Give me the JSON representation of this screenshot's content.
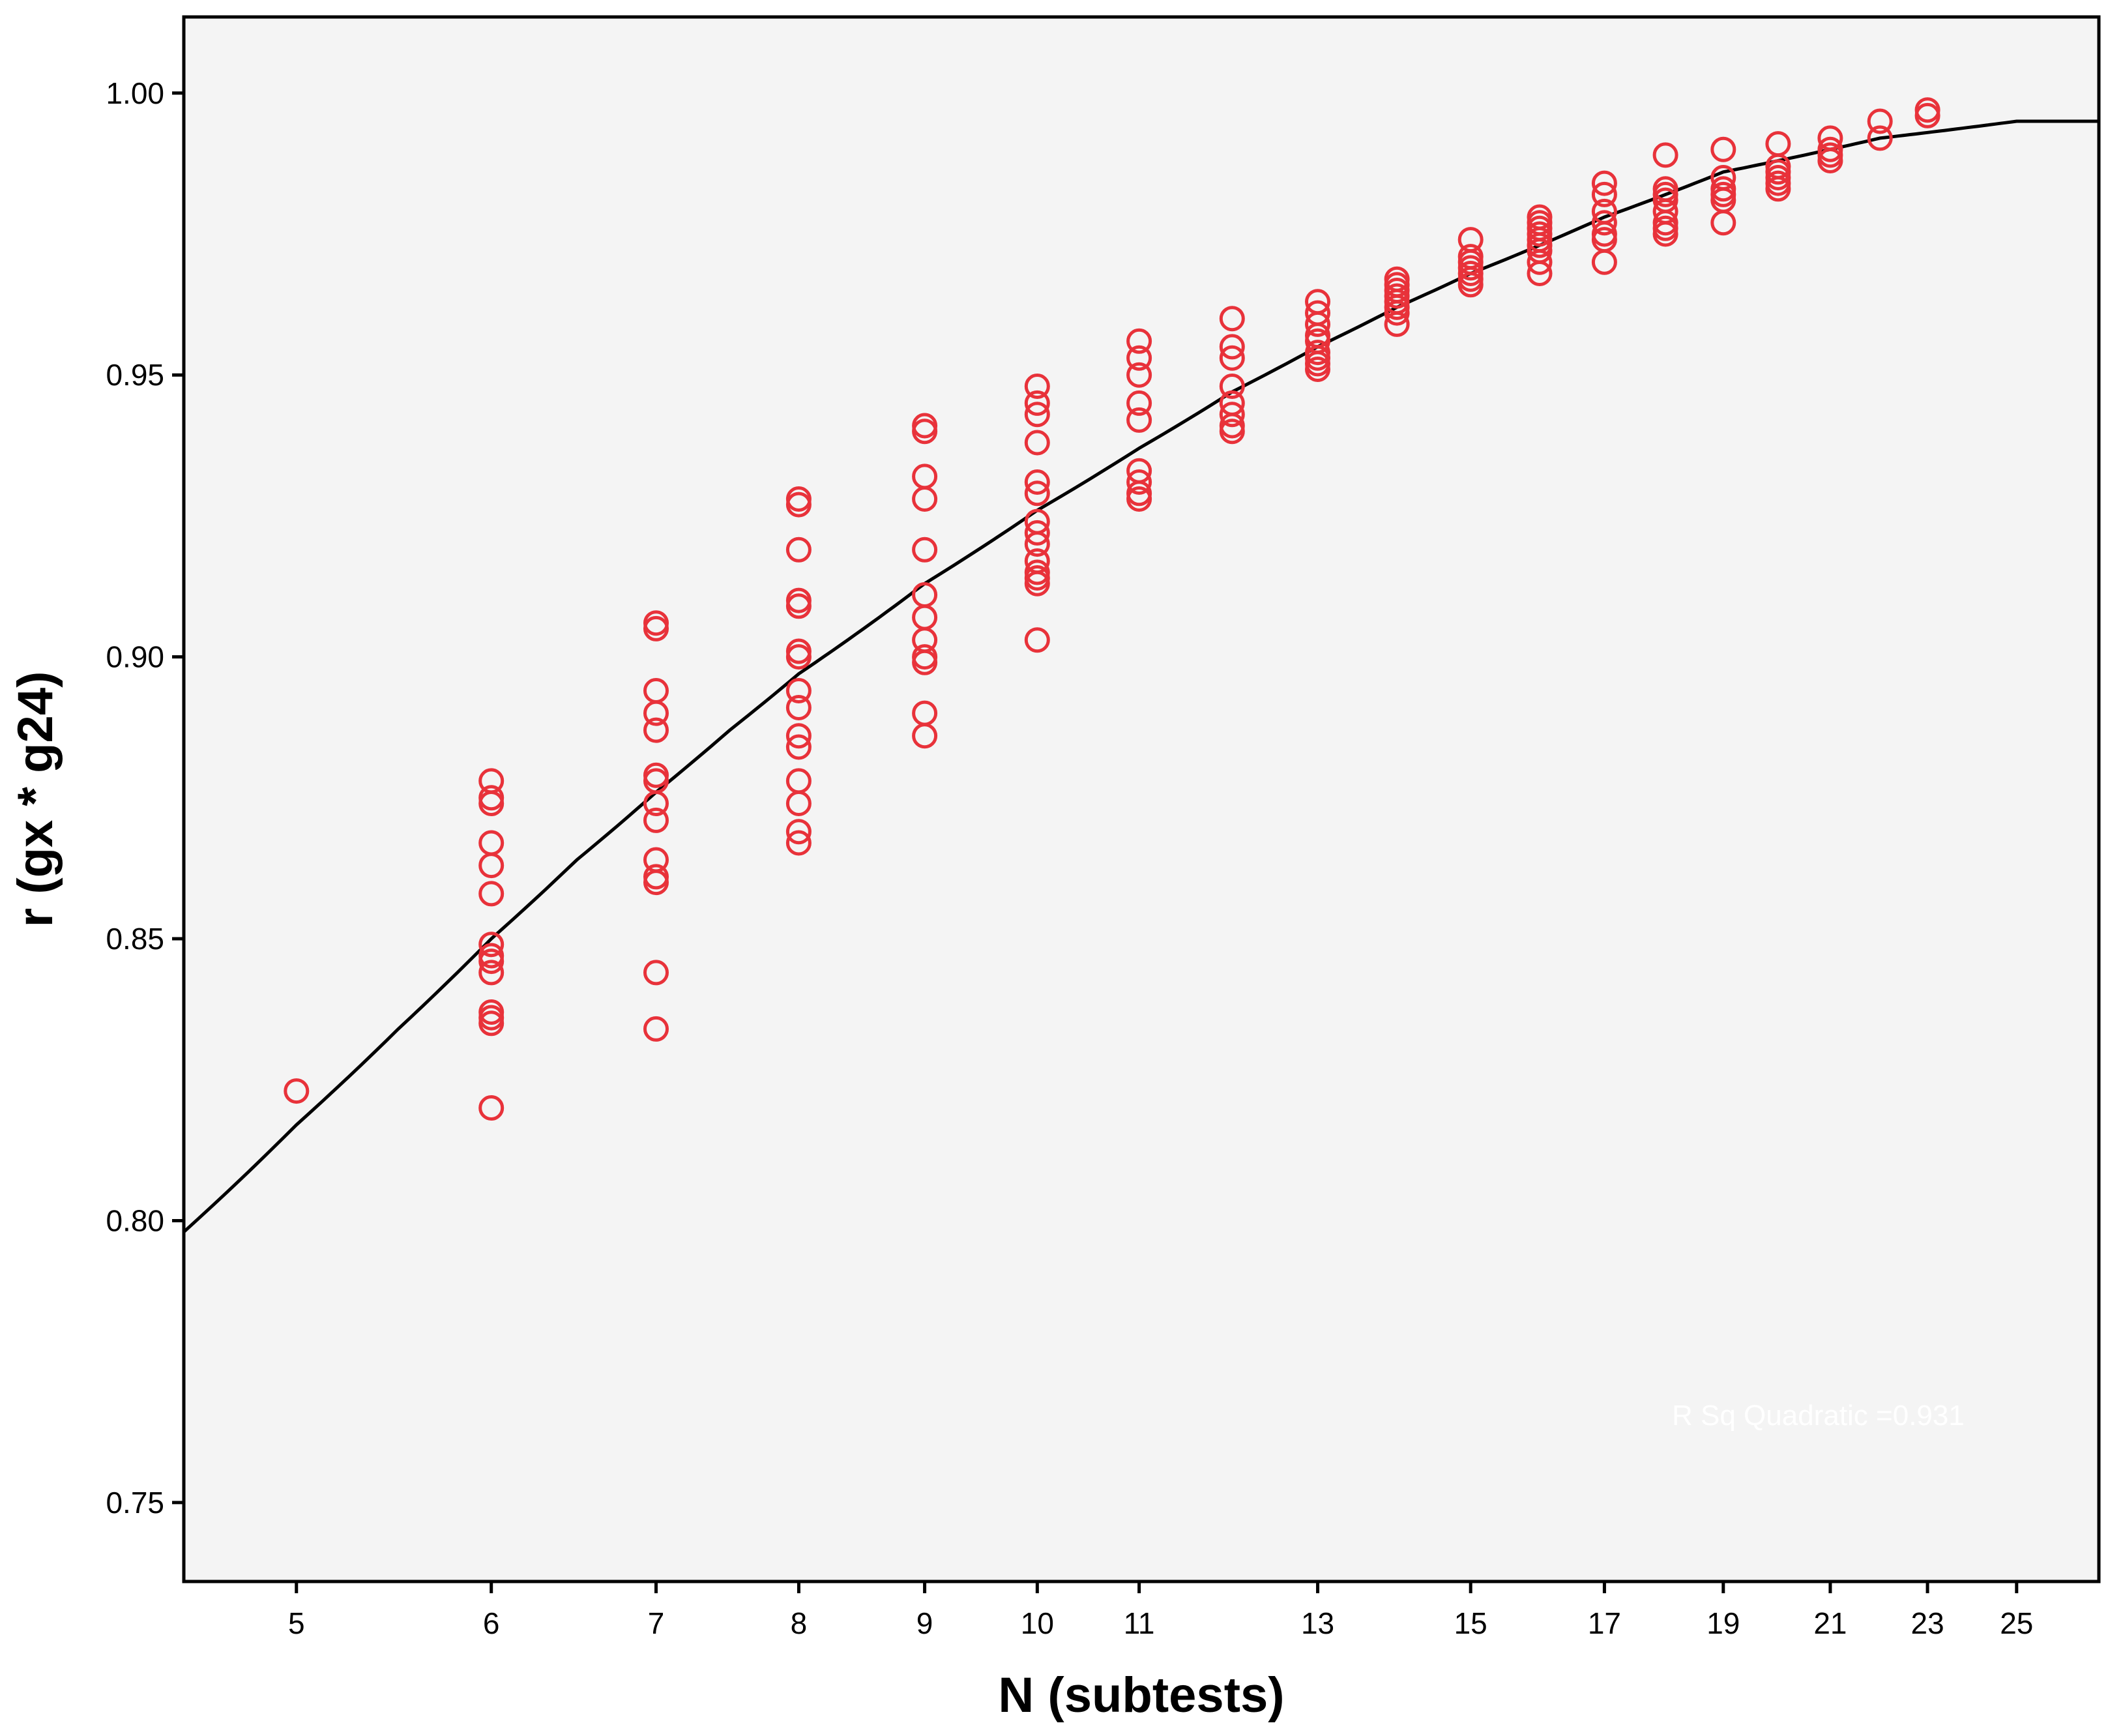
{
  "chart_data": {
    "type": "scatter",
    "title": "",
    "xlabel": "N (subtests)",
    "ylabel": "r (gx * g24)",
    "x_scale": "log",
    "xlim": [
      4.5,
      27.0
    ],
    "ylim": [
      0.736,
      1.0135
    ],
    "x_ticks": [
      5,
      6,
      7,
      8,
      9,
      10,
      11,
      13,
      15,
      17,
      19,
      21,
      23,
      25
    ],
    "y_ticks": [
      0.75,
      0.8,
      0.85,
      0.9,
      0.95,
      1.0
    ],
    "y_tick_labels": [
      "0.75",
      "0.80",
      "0.85",
      "0.90",
      "0.95",
      "1.00"
    ],
    "grid": false,
    "legend": "none",
    "background_color": "#f4f4f4",
    "marker": "open-circle",
    "marker_color": "#e8323a",
    "line_color": "#000000",
    "annotation": "R Sq Quadratic =0.931",
    "points": [
      [
        5,
        0.823
      ],
      [
        6,
        0.878
      ],
      [
        6,
        0.875
      ],
      [
        6,
        0.874
      ],
      [
        6,
        0.867
      ],
      [
        6,
        0.863
      ],
      [
        6,
        0.858
      ],
      [
        6,
        0.849
      ],
      [
        6,
        0.847
      ],
      [
        6,
        0.846
      ],
      [
        6,
        0.844
      ],
      [
        6,
        0.837
      ],
      [
        6,
        0.836
      ],
      [
        6,
        0.835
      ],
      [
        6,
        0.82
      ],
      [
        7,
        0.906
      ],
      [
        7,
        0.905
      ],
      [
        7,
        0.894
      ],
      [
        7,
        0.89
      ],
      [
        7,
        0.887
      ],
      [
        7,
        0.879
      ],
      [
        7,
        0.878
      ],
      [
        7,
        0.874
      ],
      [
        7,
        0.871
      ],
      [
        7,
        0.864
      ],
      [
        7,
        0.861
      ],
      [
        7,
        0.86
      ],
      [
        7,
        0.844
      ],
      [
        7,
        0.834
      ],
      [
        8,
        0.928
      ],
      [
        8,
        0.927
      ],
      [
        8,
        0.919
      ],
      [
        8,
        0.91
      ],
      [
        8,
        0.909
      ],
      [
        8,
        0.901
      ],
      [
        8,
        0.9
      ],
      [
        8,
        0.894
      ],
      [
        8,
        0.891
      ],
      [
        8,
        0.886
      ],
      [
        8,
        0.884
      ],
      [
        8,
        0.878
      ],
      [
        8,
        0.874
      ],
      [
        8,
        0.869
      ],
      [
        8,
        0.867
      ],
      [
        9,
        0.941
      ],
      [
        9,
        0.94
      ],
      [
        9,
        0.932
      ],
      [
        9,
        0.928
      ],
      [
        9,
        0.919
      ],
      [
        9,
        0.911
      ],
      [
        9,
        0.907
      ],
      [
        9,
        0.903
      ],
      [
        9,
        0.9
      ],
      [
        9,
        0.899
      ],
      [
        9,
        0.89
      ],
      [
        9,
        0.886
      ],
      [
        10,
        0.948
      ],
      [
        10,
        0.945
      ],
      [
        10,
        0.943
      ],
      [
        10,
        0.938
      ],
      [
        10,
        0.931
      ],
      [
        10,
        0.929
      ],
      [
        10,
        0.924
      ],
      [
        10,
        0.922
      ],
      [
        10,
        0.92
      ],
      [
        10,
        0.917
      ],
      [
        10,
        0.915
      ],
      [
        10,
        0.914
      ],
      [
        10,
        0.913
      ],
      [
        10,
        0.903
      ],
      [
        11,
        0.956
      ],
      [
        11,
        0.953
      ],
      [
        11,
        0.95
      ],
      [
        11,
        0.945
      ],
      [
        11,
        0.942
      ],
      [
        11,
        0.933
      ],
      [
        11,
        0.931
      ],
      [
        11,
        0.929
      ],
      [
        11,
        0.928
      ],
      [
        12,
        0.96
      ],
      [
        12,
        0.955
      ],
      [
        12,
        0.953
      ],
      [
        12,
        0.948
      ],
      [
        12,
        0.945
      ],
      [
        12,
        0.943
      ],
      [
        12,
        0.941
      ],
      [
        12,
        0.94
      ],
      [
        13,
        0.963
      ],
      [
        13,
        0.961
      ],
      [
        13,
        0.959
      ],
      [
        13,
        0.957
      ],
      [
        13,
        0.956
      ],
      [
        13,
        0.954
      ],
      [
        13,
        0.953
      ],
      [
        13,
        0.952
      ],
      [
        13,
        0.951
      ],
      [
        14,
        0.967
      ],
      [
        14,
        0.966
      ],
      [
        14,
        0.965
      ],
      [
        14,
        0.964
      ],
      [
        14,
        0.963
      ],
      [
        14,
        0.962
      ],
      [
        14,
        0.961
      ],
      [
        14,
        0.959
      ],
      [
        15,
        0.974
      ],
      [
        15,
        0.971
      ],
      [
        15,
        0.97
      ],
      [
        15,
        0.969
      ],
      [
        15,
        0.968
      ],
      [
        15,
        0.967
      ],
      [
        15,
        0.966
      ],
      [
        16,
        0.978
      ],
      [
        16,
        0.977
      ],
      [
        16,
        0.976
      ],
      [
        16,
        0.975
      ],
      [
        16,
        0.974
      ],
      [
        16,
        0.973
      ],
      [
        16,
        0.972
      ],
      [
        16,
        0.97
      ],
      [
        16,
        0.968
      ],
      [
        17,
        0.984
      ],
      [
        17,
        0.982
      ],
      [
        17,
        0.979
      ],
      [
        17,
        0.977
      ],
      [
        17,
        0.975
      ],
      [
        17,
        0.974
      ],
      [
        17,
        0.97
      ],
      [
        18,
        0.989
      ],
      [
        18,
        0.983
      ],
      [
        18,
        0.982
      ],
      [
        18,
        0.981
      ],
      [
        18,
        0.979
      ],
      [
        18,
        0.977
      ],
      [
        18,
        0.976
      ],
      [
        18,
        0.975
      ],
      [
        19,
        0.99
      ],
      [
        19,
        0.985
      ],
      [
        19,
        0.983
      ],
      [
        19,
        0.982
      ],
      [
        19,
        0.981
      ],
      [
        19,
        0.977
      ],
      [
        20,
        0.991
      ],
      [
        20,
        0.987
      ],
      [
        20,
        0.986
      ],
      [
        20,
        0.985
      ],
      [
        20,
        0.984
      ],
      [
        20,
        0.983
      ],
      [
        21,
        0.992
      ],
      [
        21,
        0.99
      ],
      [
        21,
        0.989
      ],
      [
        21,
        0.988
      ],
      [
        22,
        0.995
      ],
      [
        22,
        0.992
      ],
      [
        23,
        0.997
      ],
      [
        23,
        0.996
      ]
    ],
    "fit_curve": [
      [
        4.5,
        0.798
      ],
      [
        5,
        0.817
      ],
      [
        5.5,
        0.834
      ],
      [
        6,
        0.85
      ],
      [
        6.5,
        0.864
      ],
      [
        7,
        0.876
      ],
      [
        7.5,
        0.887
      ],
      [
        8,
        0.897
      ],
      [
        8.5,
        0.905
      ],
      [
        9,
        0.913
      ],
      [
        10,
        0.926
      ],
      [
        11,
        0.937
      ],
      [
        12,
        0.947
      ],
      [
        13,
        0.955
      ],
      [
        14,
        0.962
      ],
      [
        15,
        0.968
      ],
      [
        16,
        0.973
      ],
      [
        17,
        0.978
      ],
      [
        18,
        0.982
      ],
      [
        19,
        0.986
      ],
      [
        20,
        0.988
      ],
      [
        21,
        0.99
      ],
      [
        22,
        0.992
      ],
      [
        23,
        0.993
      ],
      [
        24,
        0.994
      ],
      [
        25,
        0.995
      ],
      [
        26,
        0.995
      ],
      [
        27,
        0.995
      ]
    ]
  }
}
